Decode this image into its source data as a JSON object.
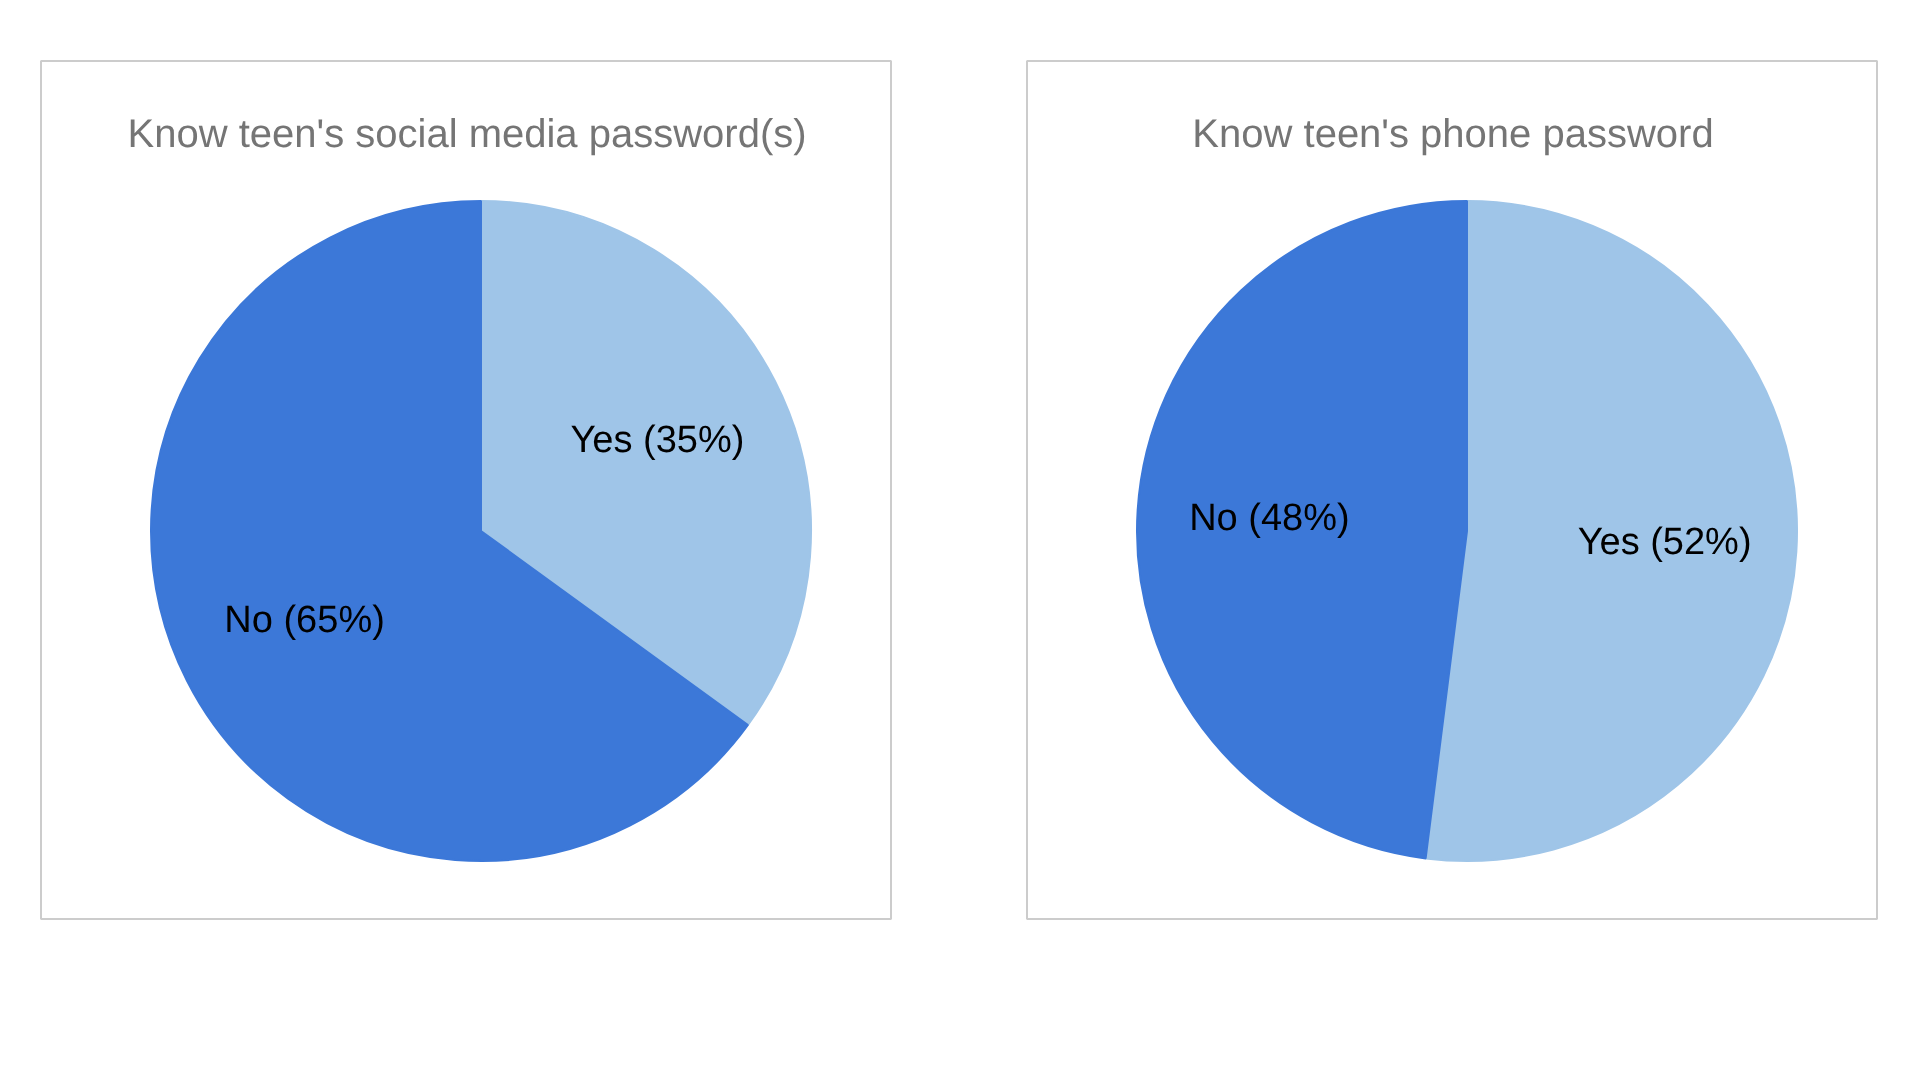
{
  "chart_data": [
    {
      "type": "pie",
      "title": "Know teen's social media password(s)",
      "categories": [
        "Yes (35%)",
        "No (65%)"
      ],
      "values": [
        35,
        65
      ],
      "colors": [
        "#9fc5e8",
        "#3c78d8"
      ]
    },
    {
      "type": "pie",
      "title": "Know teen's phone password",
      "categories": [
        "Yes (52%)",
        "No (48%)"
      ],
      "values": [
        52,
        48
      ],
      "colors": [
        "#9fc5e8",
        "#3c78d8"
      ]
    }
  ]
}
